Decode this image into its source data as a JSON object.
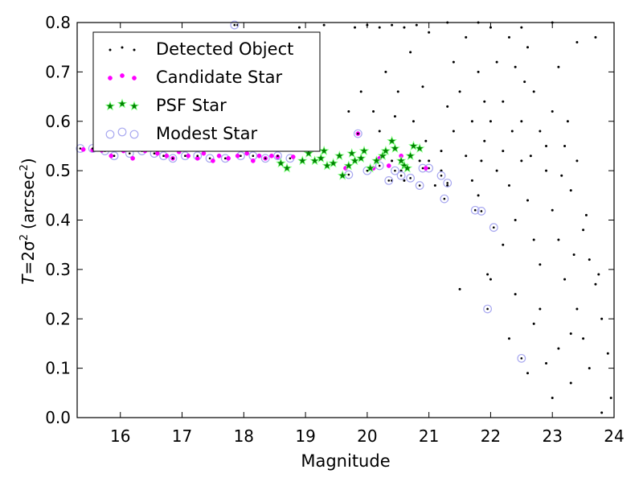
{
  "chart_data": {
    "type": "scatter",
    "title": "",
    "xlabel": "Magnitude",
    "ylabel": {
      "italic_symbol": "T",
      "equation": "=2σ",
      "exponent": "2",
      "unit_prefix": "(arcsec",
      "unit_exponent": "2",
      "unit_suffix": ")"
    },
    "xlim": [
      15.3,
      24.0
    ],
    "ylim": [
      0.0,
      0.8
    ],
    "xticks": [
      "16",
      "17",
      "18",
      "19",
      "20",
      "21",
      "22",
      "23",
      "24"
    ],
    "yticks": [
      "0.0",
      "0.1",
      "0.2",
      "0.3",
      "0.4",
      "0.5",
      "0.6",
      "0.7",
      "0.8"
    ],
    "grid": false,
    "legend_position": "top-left",
    "series": [
      {
        "name": "Detected Object",
        "marker": "dot",
        "color": "#000000",
        "points": [
          [
            17.9,
            0.795
          ],
          [
            18.9,
            0.79
          ],
          [
            19.3,
            0.795
          ],
          [
            19.8,
            0.79
          ],
          [
            20.0,
            0.795
          ],
          [
            20.2,
            0.79
          ],
          [
            20.4,
            0.795
          ],
          [
            20.6,
            0.79
          ],
          [
            20.8,
            0.795
          ],
          [
            21.0,
            0.78
          ],
          [
            19.7,
            0.62
          ],
          [
            19.9,
            0.66
          ],
          [
            20.1,
            0.62
          ],
          [
            20.3,
            0.7
          ],
          [
            20.5,
            0.66
          ],
          [
            20.7,
            0.74
          ],
          [
            20.9,
            0.67
          ],
          [
            20.2,
            0.58
          ],
          [
            20.45,
            0.61
          ],
          [
            20.75,
            0.6
          ],
          [
            20.95,
            0.56
          ],
          [
            20.4,
            0.52
          ],
          [
            20.55,
            0.5
          ],
          [
            20.85,
            0.52
          ],
          [
            21.0,
            0.52
          ],
          [
            20.6,
            0.48
          ],
          [
            20.4,
            0.48
          ],
          [
            21.1,
            0.47
          ],
          [
            21.2,
            0.5
          ],
          [
            21.3,
            0.47
          ],
          [
            21.2,
            0.54
          ],
          [
            21.4,
            0.58
          ],
          [
            21.3,
            0.63
          ],
          [
            21.5,
            0.66
          ],
          [
            21.4,
            0.72
          ],
          [
            21.6,
            0.77
          ],
          [
            21.6,
            0.53
          ],
          [
            21.7,
            0.6
          ],
          [
            21.8,
            0.7
          ],
          [
            21.9,
            0.64
          ],
          [
            21.7,
            0.48
          ],
          [
            21.9,
            0.56
          ],
          [
            22.0,
            0.79
          ],
          [
            22.1,
            0.72
          ],
          [
            22.0,
            0.6
          ],
          [
            21.8,
            0.45
          ],
          [
            22.1,
            0.5
          ],
          [
            22.2,
            0.64
          ],
          [
            22.3,
            0.77
          ],
          [
            22.2,
            0.54
          ],
          [
            22.4,
            0.71
          ],
          [
            22.3,
            0.47
          ],
          [
            22.5,
            0.6
          ],
          [
            22.6,
            0.75
          ],
          [
            22.4,
            0.4
          ],
          [
            22.5,
            0.52
          ],
          [
            22.7,
            0.66
          ],
          [
            22.6,
            0.44
          ],
          [
            22.8,
            0.58
          ],
          [
            22.7,
            0.36
          ],
          [
            22.9,
            0.5
          ],
          [
            22.8,
            0.31
          ],
          [
            23.0,
            0.62
          ],
          [
            23.0,
            0.42
          ],
          [
            23.1,
            0.71
          ],
          [
            23.2,
            0.55
          ],
          [
            23.1,
            0.36
          ],
          [
            23.3,
            0.46
          ],
          [
            23.2,
            0.28
          ],
          [
            23.4,
            0.52
          ],
          [
            23.4,
            0.22
          ],
          [
            23.5,
            0.38
          ],
          [
            23.6,
            0.32
          ],
          [
            23.5,
            0.16
          ],
          [
            23.7,
            0.27
          ],
          [
            23.8,
            0.2
          ],
          [
            23.6,
            0.1
          ],
          [
            23.9,
            0.13
          ],
          [
            23.8,
            0.01
          ],
          [
            23.95,
            0.04
          ],
          [
            22.6,
            0.09
          ],
          [
            22.9,
            0.11
          ],
          [
            23.0,
            0.04
          ],
          [
            23.3,
            0.07
          ],
          [
            22.3,
            0.16
          ],
          [
            22.7,
            0.19
          ],
          [
            23.1,
            0.14
          ],
          [
            22.0,
            0.28
          ],
          [
            22.2,
            0.35
          ],
          [
            21.5,
            0.26
          ],
          [
            21.95,
            0.29
          ],
          [
            22.4,
            0.25
          ],
          [
            22.8,
            0.22
          ],
          [
            23.3,
            0.17
          ],
          [
            21.3,
            0.8
          ],
          [
            21.8,
            0.8
          ],
          [
            22.5,
            0.79
          ],
          [
            23.0,
            0.8
          ],
          [
            23.4,
            0.76
          ],
          [
            23.7,
            0.77
          ],
          [
            22.9,
            0.55
          ],
          [
            23.25,
            0.6
          ],
          [
            23.15,
            0.49
          ],
          [
            22.35,
            0.58
          ],
          [
            22.55,
            0.68
          ],
          [
            21.85,
            0.52
          ],
          [
            22.65,
            0.53
          ],
          [
            23.55,
            0.41
          ],
          [
            23.35,
            0.33
          ],
          [
            23.75,
            0.29
          ]
        ]
      },
      {
        "name": "Candidate Star",
        "marker": "small-circle",
        "color": "#ff00ff",
        "points": [
          [
            15.4,
            0.543
          ],
          [
            15.55,
            0.542
          ],
          [
            15.7,
            0.541
          ],
          [
            15.85,
            0.53
          ],
          [
            16.05,
            0.54
          ],
          [
            16.2,
            0.525
          ],
          [
            16.4,
            0.54
          ],
          [
            16.6,
            0.535
          ],
          [
            16.75,
            0.53
          ],
          [
            16.85,
            0.525
          ],
          [
            16.95,
            0.538
          ],
          [
            17.1,
            0.53
          ],
          [
            17.25,
            0.525
          ],
          [
            17.35,
            0.535
          ],
          [
            17.5,
            0.52
          ],
          [
            17.6,
            0.53
          ],
          [
            17.75,
            0.525
          ],
          [
            17.9,
            0.53
          ],
          [
            18.05,
            0.535
          ],
          [
            18.15,
            0.52
          ],
          [
            18.25,
            0.53
          ],
          [
            18.35,
            0.525
          ],
          [
            18.45,
            0.53
          ],
          [
            18.55,
            0.528
          ],
          [
            18.8,
            0.528
          ],
          [
            19.85,
            0.575
          ],
          [
            20.1,
            0.505
          ],
          [
            20.2,
            0.525
          ],
          [
            20.35,
            0.51
          ],
          [
            20.55,
            0.53
          ],
          [
            20.95,
            0.505
          ],
          [
            19.65,
            0.505
          ]
        ]
      },
      {
        "name": "PSF Star",
        "marker": "star",
        "color": "#008000",
        "points": [
          [
            18.6,
            0.515
          ],
          [
            18.7,
            0.505
          ],
          [
            18.95,
            0.52
          ],
          [
            19.05,
            0.535
          ],
          [
            19.15,
            0.52
          ],
          [
            19.25,
            0.525
          ],
          [
            19.3,
            0.54
          ],
          [
            19.35,
            0.51
          ],
          [
            19.55,
            0.53
          ],
          [
            19.6,
            0.49
          ],
          [
            19.75,
            0.535
          ],
          [
            19.8,
            0.52
          ],
          [
            19.9,
            0.525
          ],
          [
            19.95,
            0.54
          ],
          [
            20.05,
            0.505
          ],
          [
            20.15,
            0.52
          ],
          [
            20.25,
            0.53
          ],
          [
            20.3,
            0.54
          ],
          [
            20.4,
            0.56
          ],
          [
            20.45,
            0.545
          ],
          [
            20.55,
            0.52
          ],
          [
            20.6,
            0.51
          ],
          [
            20.7,
            0.53
          ],
          [
            20.75,
            0.55
          ],
          [
            20.85,
            0.545
          ],
          [
            20.65,
            0.505
          ],
          [
            19.45,
            0.515
          ],
          [
            19.7,
            0.51
          ]
        ]
      },
      {
        "name": "Modest Star",
        "marker": "open-circle",
        "color": "#a8a8f0",
        "points": [
          [
            15.35,
            0.545
          ],
          [
            15.55,
            0.545
          ],
          [
            15.75,
            0.54
          ],
          [
            15.9,
            0.53
          ],
          [
            16.15,
            0.535
          ],
          [
            16.35,
            0.54
          ],
          [
            16.55,
            0.535
          ],
          [
            16.7,
            0.53
          ],
          [
            16.85,
            0.525
          ],
          [
            17.05,
            0.53
          ],
          [
            17.25,
            0.53
          ],
          [
            17.45,
            0.525
          ],
          [
            17.7,
            0.525
          ],
          [
            17.95,
            0.53
          ],
          [
            18.15,
            0.53
          ],
          [
            18.35,
            0.525
          ],
          [
            18.55,
            0.53
          ],
          [
            18.75,
            0.525
          ],
          [
            17.85,
            0.795
          ],
          [
            19.85,
            0.575
          ],
          [
            19.7,
            0.492
          ],
          [
            20.0,
            0.5
          ],
          [
            20.35,
            0.48
          ],
          [
            20.55,
            0.49
          ],
          [
            20.7,
            0.485
          ],
          [
            20.85,
            0.47
          ],
          [
            20.9,
            0.505
          ],
          [
            21.0,
            0.505
          ],
          [
            21.2,
            0.49
          ],
          [
            21.3,
            0.475
          ],
          [
            21.25,
            0.443
          ],
          [
            21.75,
            0.42
          ],
          [
            21.85,
            0.418
          ],
          [
            22.05,
            0.385
          ],
          [
            21.95,
            0.22
          ],
          [
            22.5,
            0.12
          ],
          [
            20.45,
            0.5
          ],
          [
            20.2,
            0.51
          ]
        ]
      }
    ]
  }
}
